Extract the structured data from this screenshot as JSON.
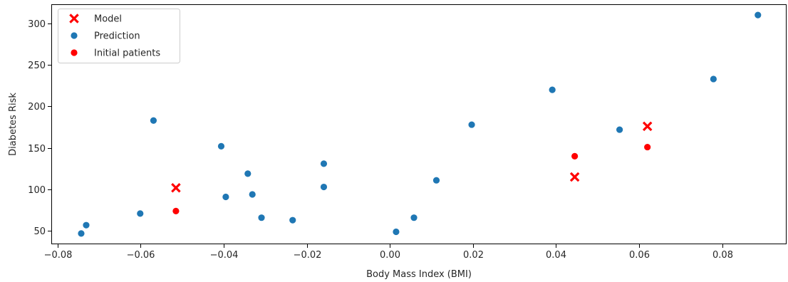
{
  "chart_data": {
    "type": "scatter",
    "xlabel": "Body Mass Index (BMI)",
    "ylabel": "Diabetes Risk",
    "xlim": [
      -0.0815,
      0.0955
    ],
    "ylim": [
      34,
      323
    ],
    "x_ticks": [
      -0.08,
      -0.06,
      -0.04,
      -0.02,
      0.0,
      0.02,
      0.04,
      0.06,
      0.08
    ],
    "x_tick_labels": [
      "−0.08",
      "−0.06",
      "−0.04",
      "−0.02",
      "0.00",
      "0.02",
      "0.04",
      "0.06",
      "0.08"
    ],
    "y_ticks": [
      50,
      100,
      150,
      200,
      250,
      300
    ],
    "y_tick_labels": [
      "50",
      "100",
      "150",
      "200",
      "250",
      "300"
    ],
    "grid": false,
    "legend_position": "top-left",
    "series": [
      {
        "name": "Model",
        "marker": "x",
        "color": "#ff0000",
        "points": [
          {
            "x": -0.0515,
            "y": 102
          },
          {
            "x": 0.0445,
            "y": 115
          },
          {
            "x": 0.062,
            "y": 176
          }
        ]
      },
      {
        "name": "Prediction",
        "marker": "circle",
        "color": "#1f77b4",
        "points": [
          {
            "x": -0.0743,
            "y": 47
          },
          {
            "x": -0.0731,
            "y": 57
          },
          {
            "x": -0.0601,
            "y": 71
          },
          {
            "x": -0.0569,
            "y": 183
          },
          {
            "x": -0.0406,
            "y": 152
          },
          {
            "x": -0.0395,
            "y": 91
          },
          {
            "x": -0.0342,
            "y": 119
          },
          {
            "x": -0.0331,
            "y": 94
          },
          {
            "x": -0.0309,
            "y": 66
          },
          {
            "x": -0.0234,
            "y": 63
          },
          {
            "x": -0.0159,
            "y": 131
          },
          {
            "x": -0.0159,
            "y": 103
          },
          {
            "x": 0.0015,
            "y": 49
          },
          {
            "x": 0.0058,
            "y": 66
          },
          {
            "x": 0.0112,
            "y": 111
          },
          {
            "x": 0.0197,
            "y": 178
          },
          {
            "x": 0.0391,
            "y": 220
          },
          {
            "x": 0.0553,
            "y": 172
          },
          {
            "x": 0.0779,
            "y": 233
          },
          {
            "x": 0.0886,
            "y": 310
          }
        ]
      },
      {
        "name": "Initial patients",
        "marker": "circle",
        "color": "#ff0000",
        "points": [
          {
            "x": -0.0515,
            "y": 74
          },
          {
            "x": 0.0445,
            "y": 140
          },
          {
            "x": 0.062,
            "y": 151
          }
        ]
      }
    ]
  }
}
